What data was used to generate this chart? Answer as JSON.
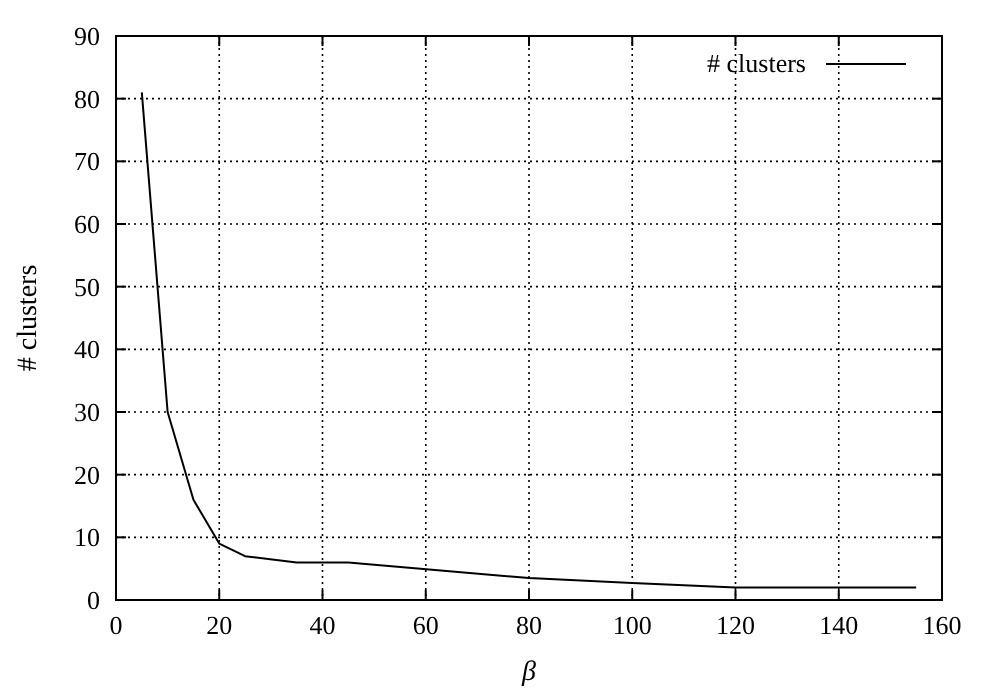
{
  "chart_data": {
    "type": "line",
    "xlabel": "β",
    "ylabel": "# clusters",
    "x": [
      5,
      10,
      15,
      20,
      25,
      35,
      45,
      80,
      100,
      120,
      155
    ],
    "series": [
      {
        "name": "# clusters",
        "color": "#000000",
        "values": [
          81,
          30,
          16,
          9,
          7,
          6,
          6,
          3.5,
          2.7,
          2,
          2
        ]
      }
    ],
    "xlim": [
      0,
      160
    ],
    "xticks": [
      0,
      20,
      40,
      60,
      80,
      100,
      120,
      140,
      160
    ],
    "ylim": [
      0,
      90
    ],
    "yticks": [
      0,
      10,
      20,
      30,
      40,
      50,
      60,
      70,
      80,
      90
    ],
    "grid": true,
    "legend": "top right",
    "marker": "none",
    "line_style": "solid"
  }
}
